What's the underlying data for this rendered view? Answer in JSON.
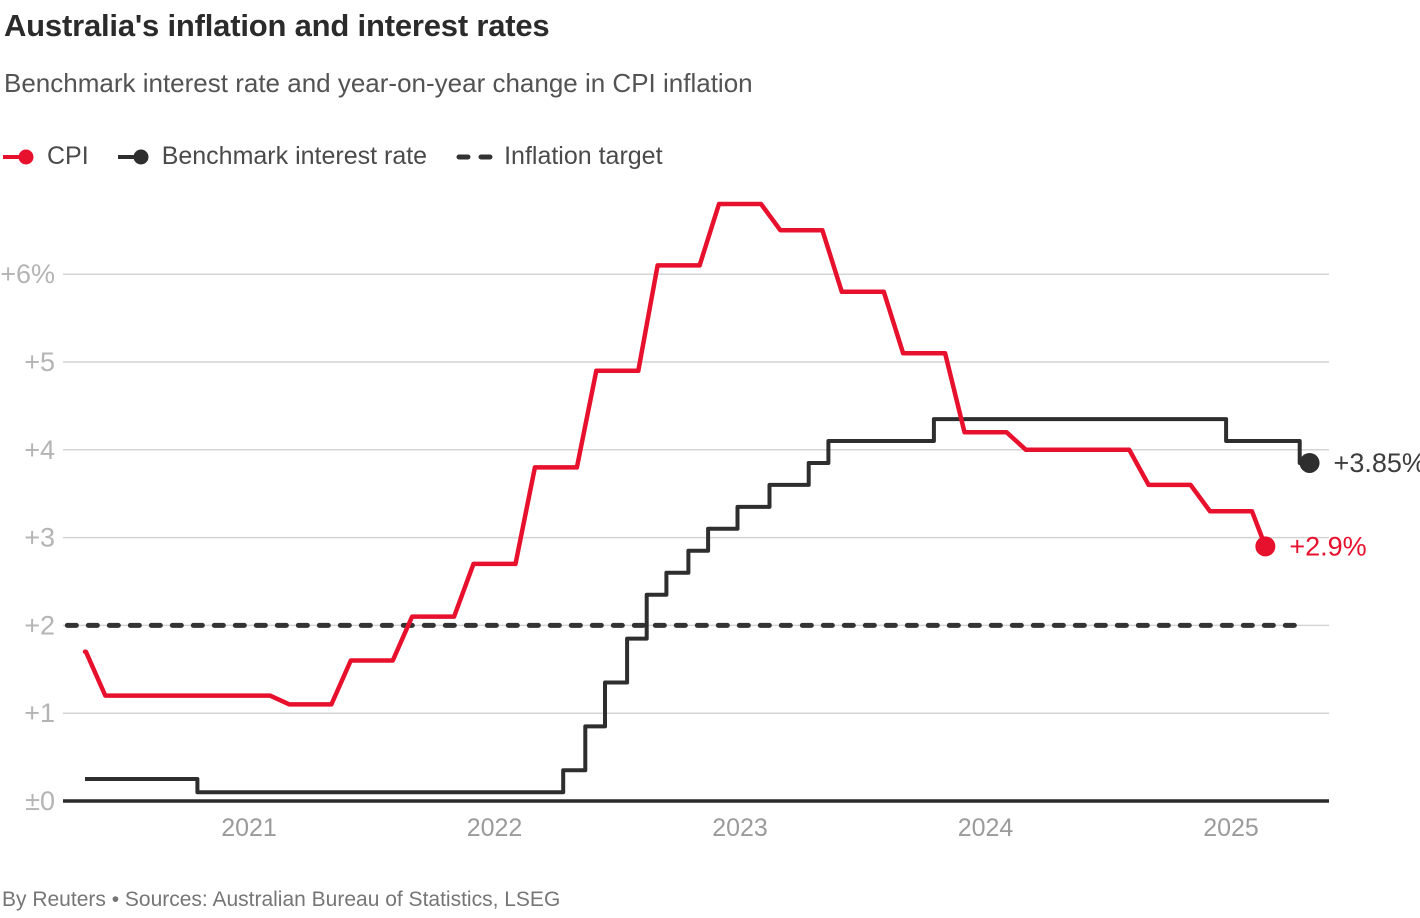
{
  "page": {
    "title": "Australia's inflation and interest rates",
    "subtitle": "Benchmark interest rate and year-on-year change in CPI inflation",
    "footer": "By Reuters • Sources: Australian Bureau of Statistics, LSEG"
  },
  "legend": {
    "items": [
      {
        "label": "CPI",
        "color": "#e8112d",
        "marker": "line-dot"
      },
      {
        "label": "Benchmark interest rate",
        "color": "#2e2e2e",
        "marker": "line-dot"
      },
      {
        "label": "Inflation target",
        "color": "#333333",
        "marker": "dashes"
      }
    ]
  },
  "chart_data": {
    "type": "line",
    "title": "Australia's inflation and interest rates",
    "subtitle": "Benchmark interest rate and year-on-year change in CPI inflation",
    "xlabel": "",
    "ylabel": "",
    "unit": "%",
    "grid": "horizontal",
    "x_axis": {
      "ticks": [
        2021,
        2022,
        2023,
        2024,
        2025
      ],
      "range": [
        2020.25,
        2025.45
      ]
    },
    "y_axis": {
      "tick_values": [
        0,
        1,
        2,
        3,
        4,
        5,
        6
      ],
      "tick_labels": [
        "±0",
        "+1",
        "+2",
        "+3",
        "+4",
        "+5",
        "+6%"
      ],
      "range": [
        0,
        6.9
      ]
    },
    "series": [
      {
        "name": "CPI",
        "color": "#e8112d",
        "style": "quarterly step with ramp",
        "end_label": "+2.9%",
        "points": [
          [
            2020.25,
            1.7
          ],
          [
            2020.5,
            1.2
          ],
          [
            2020.75,
            1.2
          ],
          [
            2021.0,
            1.2
          ],
          [
            2021.25,
            1.1
          ],
          [
            2021.5,
            1.6
          ],
          [
            2021.75,
            2.1
          ],
          [
            2022.0,
            2.7
          ],
          [
            2022.25,
            3.8
          ],
          [
            2022.5,
            4.9
          ],
          [
            2022.75,
            6.1
          ],
          [
            2023.0,
            6.8
          ],
          [
            2023.25,
            6.5
          ],
          [
            2023.5,
            5.8
          ],
          [
            2023.75,
            5.1
          ],
          [
            2024.0,
            4.2
          ],
          [
            2024.25,
            4.0
          ],
          [
            2024.5,
            4.0
          ],
          [
            2024.75,
            3.6
          ],
          [
            2025.0,
            3.3
          ],
          [
            2025.14,
            2.9
          ]
        ]
      },
      {
        "name": "Benchmark interest rate",
        "color": "#2e2e2e",
        "style": "step",
        "end_label": "+3.85%",
        "steps": [
          [
            2020.33,
            0.25
          ],
          [
            2020.79,
            0.1
          ],
          [
            2022.28,
            0.35
          ],
          [
            2022.37,
            0.85
          ],
          [
            2022.45,
            1.35
          ],
          [
            2022.54,
            1.85
          ],
          [
            2022.62,
            2.35
          ],
          [
            2022.7,
            2.6
          ],
          [
            2022.79,
            2.85
          ],
          [
            2022.87,
            3.1
          ],
          [
            2022.99,
            3.35
          ],
          [
            2023.12,
            3.6
          ],
          [
            2023.28,
            3.85
          ],
          [
            2023.36,
            4.1
          ],
          [
            2023.79,
            4.35
          ],
          [
            2024.98,
            4.1
          ],
          [
            2025.28,
            3.85
          ]
        ],
        "end_t": 2025.32
      },
      {
        "name": "Inflation target",
        "color": "#333333",
        "style": "dashed horizontal",
        "value": 2.0,
        "t_range": [
          2020.26,
          2025.27
        ]
      }
    ]
  }
}
